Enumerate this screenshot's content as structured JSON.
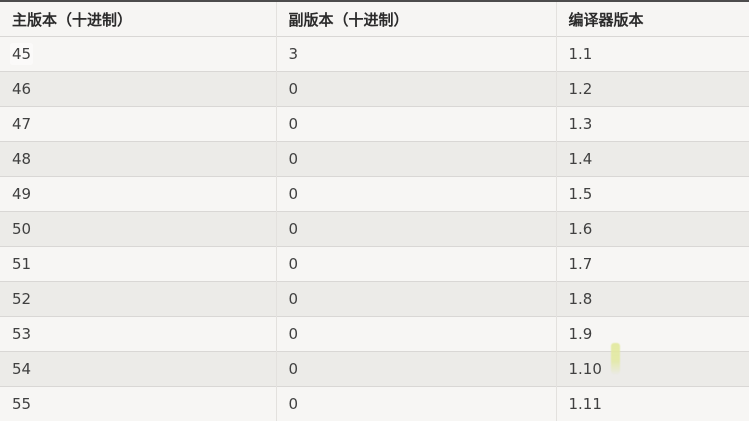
{
  "table": {
    "columns": [
      {
        "key": "major",
        "label": "主版本（十进制）"
      },
      {
        "key": "minor",
        "label": "副版本（十进制）"
      },
      {
        "key": "compiler",
        "label": "编译器版本"
      }
    ],
    "rows": [
      {
        "major": "45",
        "minor": "3",
        "compiler": "1.1"
      },
      {
        "major": "46",
        "minor": "0",
        "compiler": "1.2"
      },
      {
        "major": "47",
        "minor": "0",
        "compiler": "1.3"
      },
      {
        "major": "48",
        "minor": "0",
        "compiler": "1.4"
      },
      {
        "major": "49",
        "minor": "0",
        "compiler": "1.5"
      },
      {
        "major": "50",
        "minor": "0",
        "compiler": "1.6"
      },
      {
        "major": "51",
        "minor": "0",
        "compiler": "1.7"
      },
      {
        "major": "52",
        "minor": "0",
        "compiler": "1.8"
      },
      {
        "major": "53",
        "minor": "0",
        "compiler": "1.9"
      },
      {
        "major": "54",
        "minor": "0",
        "compiler": "1.10"
      },
      {
        "major": "55",
        "minor": "0",
        "compiler": "1.11"
      }
    ]
  },
  "colors": {
    "top_border": "#4c4c4c",
    "header_bg": "#f6f5f3",
    "row_light": "#f7f6f4",
    "row_dark": "#ecebe8",
    "divider": "#d9d7d5",
    "col_divider": "#e3e1de",
    "header_text": "#2b2b2b",
    "cell_text": "#404040",
    "highlight": "#e2e99f"
  }
}
